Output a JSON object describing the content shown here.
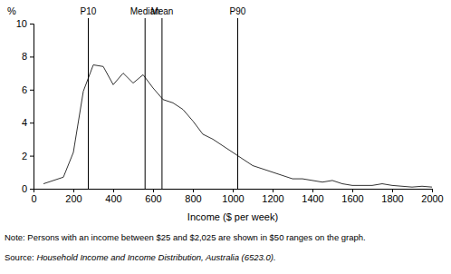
{
  "chart_data": {
    "type": "line",
    "x_label": "Income ($ per week)",
    "y_label": "%",
    "x": [
      50,
      100,
      150,
      200,
      250,
      300,
      350,
      400,
      450,
      500,
      550,
      600,
      650,
      700,
      750,
      800,
      850,
      900,
      950,
      1000,
      1050,
      1100,
      1150,
      1200,
      1250,
      1300,
      1350,
      1400,
      1450,
      1500,
      1550,
      1600,
      1650,
      1700,
      1750,
      1800,
      1850,
      1900,
      1950,
      2000
    ],
    "values": [
      0.3,
      0.5,
      0.7,
      2.2,
      5.9,
      7.5,
      7.4,
      6.3,
      7.0,
      6.4,
      6.9,
      6.1,
      5.4,
      5.2,
      4.8,
      4.1,
      3.3,
      3.0,
      2.6,
      2.2,
      1.8,
      1.4,
      1.2,
      1.0,
      0.8,
      0.6,
      0.6,
      0.5,
      0.4,
      0.5,
      0.3,
      0.2,
      0.2,
      0.2,
      0.3,
      0.2,
      0.15,
      0.1,
      0.15,
      0.1
    ],
    "color": "#333333",
    "xlim": [
      0,
      2000
    ],
    "xticks": [
      0,
      200,
      400,
      600,
      800,
      1000,
      1200,
      1400,
      1600,
      1800,
      2000
    ],
    "ylim": [
      0,
      10
    ],
    "yticks": [
      0,
      2,
      4,
      6,
      8,
      10
    ],
    "annotations": [
      {
        "label": "P10",
        "x": 275
      },
      {
        "label": "Median",
        "x": 560
      },
      {
        "label": "Mean",
        "x": 645
      },
      {
        "label": "P90",
        "x": 1025
      }
    ],
    "note": "Note: Persons with an income between $25 and $2,025 are shown in $50 ranges on the graph.",
    "source": {
      "prefix": "Source:",
      "title": "Household Income and Income Distribution, Australia (6523.0)."
    }
  }
}
